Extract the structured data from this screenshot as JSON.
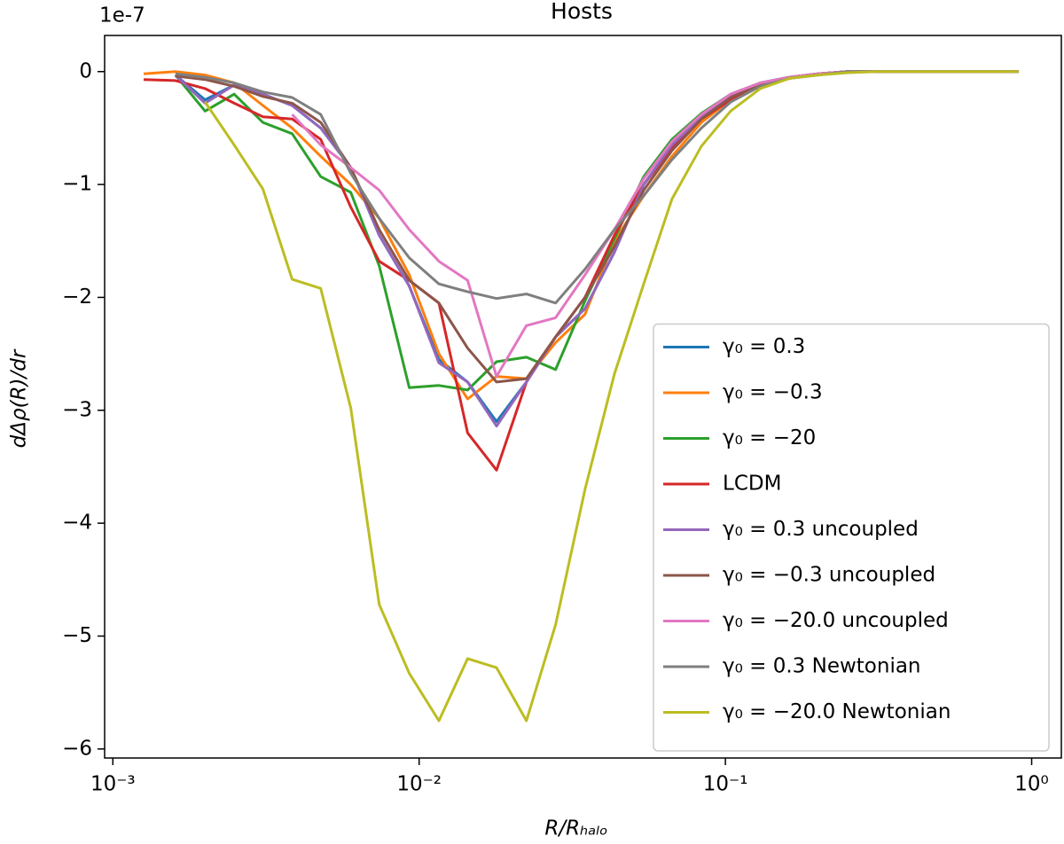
{
  "chart_data": {
    "type": "line",
    "title": "Hosts",
    "x_label": "R/Rₕₐₗₒ",
    "y_label": "dΔρ(R)/dr",
    "y_offset_label": "1e-7",
    "x_scale": "log",
    "legend": "lower right",
    "grid": false,
    "xlim": [
      0.00094,
      1.25
    ],
    "ylim": [
      -6.08,
      0.32
    ],
    "xticks": [
      {
        "value": 0.001,
        "label": "10⁻³"
      },
      {
        "value": 0.01,
        "label": "10⁻²"
      },
      {
        "value": 0.1,
        "label": "10⁻¹"
      },
      {
        "value": 1,
        "label": "10⁰"
      }
    ],
    "yticks": [
      {
        "value": -6,
        "label": "−6"
      },
      {
        "value": -5,
        "label": "−5"
      },
      {
        "value": -4,
        "label": "−4"
      },
      {
        "value": -3,
        "label": "−3"
      },
      {
        "value": -2,
        "label": "−2"
      },
      {
        "value": -1,
        "label": "−1"
      },
      0
    ],
    "x": [
      0.00126,
      0.0016,
      0.002,
      0.00249,
      0.00309,
      0.00385,
      0.00477,
      0.00598,
      0.00741,
      0.00929,
      0.0116,
      0.0144,
      0.0179,
      0.0224,
      0.0279,
      0.0348,
      0.0434,
      0.0541,
      0.0669,
      0.0835,
      0.104,
      0.13,
      0.162,
      0.201,
      0.251,
      0.313,
      0.39,
      0.486,
      0.607,
      0.756,
      0.906
    ],
    "series": [
      {
        "name": "γ₀ = 0.3",
        "color": "#1f77b4",
        "values": [
          null,
          -0.03,
          -0.25,
          -0.12,
          -0.2,
          -0.3,
          -0.5,
          -0.85,
          -1.45,
          -1.9,
          -2.55,
          -2.75,
          -3.1,
          -2.75,
          -2.35,
          -2.1,
          -1.6,
          -1.0,
          -0.65,
          -0.4,
          -0.22,
          -0.1,
          -0.05,
          -0.02,
          0,
          0,
          0,
          0,
          0,
          0,
          0
        ]
      },
      {
        "name": "γ₀ = −0.3",
        "color": "#ff7f0e",
        "values": [
          -0.02,
          0.0,
          -0.03,
          -0.1,
          -0.3,
          -0.5,
          -0.75,
          -1.0,
          -1.3,
          -1.8,
          -2.5,
          -2.9,
          -2.7,
          -2.72,
          -2.4,
          -2.15,
          -1.5,
          -1.1,
          -0.75,
          -0.45,
          -0.25,
          -0.12,
          -0.05,
          -0.02,
          0,
          0,
          0,
          0,
          0,
          0,
          0
        ]
      },
      {
        "name": "γ₀ = −20",
        "color": "#2ca02c",
        "values": [
          null,
          -0.03,
          -0.35,
          -0.2,
          -0.45,
          -0.55,
          -0.93,
          -1.07,
          -1.72,
          -2.8,
          -2.78,
          -2.82,
          -2.57,
          -2.53,
          -2.64,
          -2.03,
          -1.48,
          -0.93,
          -0.6,
          -0.37,
          -0.2,
          -0.1,
          -0.05,
          -0.02,
          0,
          0,
          0,
          0,
          0,
          0,
          0
        ]
      },
      {
        "name": "LCDM",
        "color": "#d62728",
        "values": [
          -0.07,
          -0.08,
          -0.15,
          -0.28,
          -0.4,
          -0.42,
          -0.6,
          -1.2,
          -1.68,
          -1.85,
          -2.05,
          -3.2,
          -3.53,
          -2.75,
          -2.35,
          -2.0,
          -1.45,
          -1.0,
          -0.68,
          -0.42,
          -0.25,
          -0.12,
          -0.06,
          -0.02,
          0,
          0,
          0,
          0,
          0,
          0,
          0
        ]
      },
      {
        "name": "γ₀ = 0.3 uncoupled",
        "color": "#9467bd",
        "values": [
          null,
          -0.03,
          -0.28,
          -0.12,
          -0.2,
          -0.3,
          -0.5,
          -0.85,
          -1.45,
          -1.9,
          -2.58,
          -2.75,
          -3.14,
          -2.75,
          -2.35,
          -2.1,
          -1.6,
          -1.0,
          -0.65,
          -0.4,
          -0.22,
          -0.1,
          -0.05,
          -0.02,
          0,
          0,
          0,
          0,
          0,
          0,
          0
        ]
      },
      {
        "name": "γ₀ = −0.3 uncoupled",
        "color": "#8c564b",
        "values": [
          null,
          -0.04,
          -0.07,
          -0.13,
          -0.22,
          -0.28,
          -0.45,
          -0.85,
          -1.4,
          -1.85,
          -2.05,
          -2.45,
          -2.75,
          -2.72,
          -2.35,
          -2.0,
          -1.55,
          -1.05,
          -0.7,
          -0.42,
          -0.23,
          -0.11,
          -0.05,
          -0.02,
          0,
          0,
          0,
          0,
          0,
          0,
          0
        ]
      },
      {
        "name": "γ₀ = −20.0 uncoupled",
        "color": "#e377c2",
        "values": [
          null,
          null,
          null,
          null,
          null,
          -0.38,
          -0.65,
          -0.85,
          -1.05,
          -1.4,
          -1.68,
          -1.85,
          -2.7,
          -2.25,
          -2.18,
          -1.8,
          -1.4,
          -0.95,
          -0.62,
          -0.38,
          -0.2,
          -0.1,
          -0.05,
          -0.02,
          0,
          0,
          0,
          0,
          0,
          0,
          0
        ]
      },
      {
        "name": "γ₀ = 0.3 Newtonian",
        "color": "#7f7f7f",
        "values": [
          null,
          -0.02,
          -0.05,
          -0.1,
          -0.18,
          -0.23,
          -0.38,
          -0.9,
          -1.3,
          -1.65,
          -1.88,
          -1.95,
          -2.01,
          -1.97,
          -2.05,
          -1.75,
          -1.4,
          -1.1,
          -0.78,
          -0.5,
          -0.27,
          -0.13,
          -0.06,
          -0.03,
          0,
          0,
          0,
          0,
          0,
          0,
          0
        ]
      },
      {
        "name": "γ₀ = −20.0 Newtonian",
        "color": "#bcbd22",
        "values": [
          null,
          null,
          -0.27,
          -0.65,
          -1.04,
          -1.84,
          -1.92,
          -2.98,
          -4.72,
          -5.33,
          -5.75,
          -5.2,
          -5.28,
          -5.75,
          -4.9,
          -3.7,
          -2.68,
          -1.88,
          -1.13,
          -0.66,
          -0.35,
          -0.15,
          -0.06,
          -0.03,
          -0.01,
          0,
          0,
          0,
          0,
          0,
          0
        ]
      }
    ]
  }
}
